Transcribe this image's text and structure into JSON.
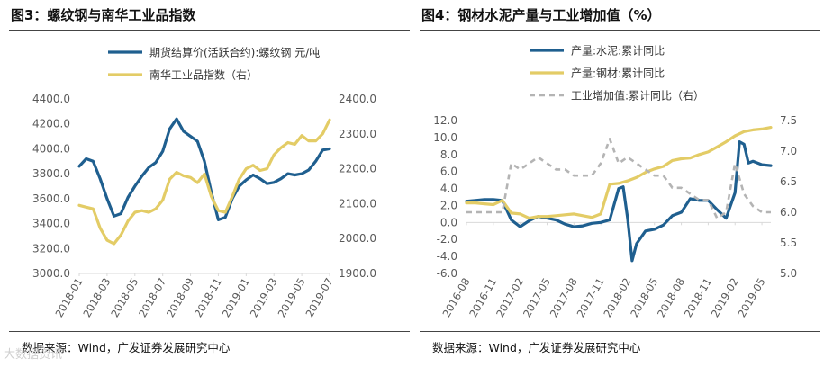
{
  "figures": [
    {
      "title": "图3：螺纹钢与南华工业品指数",
      "source": "数据来源：Wind，广发证券发展研究中心"
    },
    {
      "title": "图4：钢材水泥产量与工业增加值（%）",
      "source": "数据来源：Wind，广发证券发展研究中心"
    }
  ],
  "watermark": "大数据资讯",
  "colors": {
    "blue": "#1f5f8f",
    "yellow": "#e3cc66",
    "gray": "#b4b4b4",
    "axis": "#d9d9d9",
    "text": "#595959"
  },
  "chart_data": [
    {
      "type": "line",
      "title": "螺纹钢与南华工业品指数",
      "x_ticks": [
        "2018-01",
        "2018-03",
        "2018-05",
        "2018-07",
        "2018-09",
        "2018-11",
        "2019-01",
        "2019-03",
        "2019-05",
        "2019-07"
      ],
      "x_range": [
        0,
        18
      ],
      "y_left": {
        "range": [
          3000,
          4400
        ],
        "ticks": [
          "3000.0",
          "3200.0",
          "3400.0",
          "3600.0",
          "3800.0",
          "4000.0",
          "4200.0",
          "4400.0"
        ]
      },
      "y_right": {
        "range": [
          1900,
          2400
        ],
        "ticks": [
          "1900.0",
          "2000.0",
          "2100.0",
          "2200.0",
          "2300.0",
          "2400.0"
        ]
      },
      "series": [
        {
          "name": "期货结算价(活跃合约):螺纹钢 元/吨",
          "axis": "left",
          "color": "#1f5f8f",
          "dash": false,
          "x": [
            0,
            0.5,
            1,
            1.5,
            2,
            2.5,
            3,
            3.5,
            4,
            4.5,
            5,
            5.5,
            6,
            6.5,
            7,
            7.5,
            8,
            8.5,
            9,
            9.5,
            10,
            10.5,
            11,
            11.5,
            12,
            12.5,
            13,
            13.5,
            14,
            14.5,
            15,
            15.5,
            16,
            16.5,
            17,
            17.5,
            18
          ],
          "values": [
            3860,
            3920,
            3900,
            3760,
            3600,
            3460,
            3480,
            3610,
            3700,
            3780,
            3850,
            3890,
            3980,
            4160,
            4240,
            4140,
            4100,
            4060,
            3900,
            3650,
            3430,
            3450,
            3600,
            3700,
            3750,
            3790,
            3760,
            3720,
            3730,
            3760,
            3800,
            3790,
            3800,
            3830,
            3900,
            3990,
            4000
          ]
        },
        {
          "name": "南华工业品指数（右）",
          "axis": "right",
          "color": "#e3cc66",
          "dash": false,
          "x": [
            0,
            0.5,
            1,
            1.5,
            2,
            2.5,
            3,
            3.5,
            4,
            4.5,
            5,
            5.5,
            6,
            6.5,
            7,
            7.5,
            8,
            8.5,
            9,
            9.5,
            10,
            10.5,
            11,
            11.5,
            12,
            12.5,
            13,
            13.5,
            14,
            14.5,
            15,
            15.5,
            16,
            16.5,
            17,
            17.5,
            18
          ],
          "values": [
            2095,
            2090,
            2085,
            2030,
            1995,
            1985,
            2010,
            2050,
            2075,
            2080,
            2075,
            2085,
            2110,
            2170,
            2190,
            2180,
            2175,
            2160,
            2185,
            2120,
            2080,
            2075,
            2120,
            2170,
            2200,
            2210,
            2195,
            2200,
            2240,
            2260,
            2275,
            2270,
            2295,
            2280,
            2280,
            2300,
            2340
          ]
        }
      ]
    },
    {
      "type": "line",
      "title": "钢材水泥产量与工业增加值（%）",
      "x_ticks": [
        "2016-08",
        "2016-11",
        "2017-02",
        "2017-05",
        "2017-08",
        "2017-11",
        "2018-02",
        "2018-05",
        "2018-08",
        "2018-11",
        "2019-02",
        "2019-05"
      ],
      "x_range": [
        0,
        34
      ],
      "y_left": {
        "range": [
          -6,
          12
        ],
        "ticks": [
          "-6.0",
          "-4.0",
          "-2.0",
          "0.0",
          "2.0",
          "4.0",
          "6.0",
          "8.0",
          "10.0",
          "12.0"
        ]
      },
      "y_right": {
        "range": [
          5.0,
          7.5
        ],
        "ticks": [
          "5.0",
          "5.5",
          "6.0",
          "6.5",
          "7.0",
          "7.5"
        ]
      },
      "series": [
        {
          "name": "产量:水泥:累计同比",
          "axis": "left",
          "color": "#1f5f8f",
          "dash": false,
          "x": [
            0,
            1,
            2,
            3,
            4,
            5,
            6,
            7,
            8,
            9,
            10,
            11,
            12,
            13,
            14,
            15,
            16,
            17,
            17.5,
            18,
            18.5,
            19,
            20,
            21,
            22,
            23,
            24,
            25,
            26,
            27,
            28,
            29,
            30,
            30.5,
            31,
            31.5,
            32,
            33,
            34
          ],
          "values": [
            2.5,
            2.6,
            2.7,
            2.7,
            2.6,
            0.3,
            -0.5,
            0.2,
            0.7,
            0.5,
            0.3,
            -0.2,
            -0.5,
            -0.4,
            -0.1,
            0.0,
            0.3,
            4.0,
            4.2,
            0.5,
            -4.5,
            -2.5,
            -1.0,
            -0.8,
            -0.3,
            0.8,
            1.2,
            2.8,
            2.6,
            2.6,
            1.5,
            0.5,
            3.5,
            9.5,
            9.2,
            7.0,
            7.2,
            6.8,
            6.7
          ]
        },
        {
          "name": "产量:钢材:累计同比",
          "axis": "left",
          "color": "#e3cc66",
          "dash": false,
          "x": [
            0,
            1,
            2,
            3,
            4,
            5,
            6,
            7,
            8,
            9,
            10,
            11,
            12,
            13,
            14,
            15,
            16,
            17,
            18,
            19,
            20,
            21,
            22,
            23,
            24,
            25,
            26,
            27,
            28,
            29,
            30,
            31,
            32,
            33,
            34
          ],
          "values": [
            2.3,
            2.3,
            2.2,
            2.1,
            2.6,
            1.1,
            1.0,
            0.5,
            0.7,
            0.7,
            0.8,
            0.9,
            1.0,
            0.8,
            0.6,
            1.0,
            4.5,
            4.6,
            4.9,
            5.3,
            5.9,
            6.3,
            6.6,
            7.3,
            7.5,
            7.6,
            8.0,
            8.3,
            8.9,
            9.5,
            10.2,
            10.7,
            10.9,
            11.0,
            11.2
          ]
        },
        {
          "name": "工业增加值:累计同比（右）",
          "axis": "right",
          "color": "#b4b4b4",
          "dash": true,
          "x": [
            0,
            1,
            2,
            3,
            4,
            5,
            6,
            7,
            8,
            9,
            10,
            11,
            12,
            13,
            14,
            15,
            16,
            17,
            18,
            19,
            20,
            21,
            22,
            23,
            24,
            25,
            26,
            27,
            28,
            29,
            30,
            31,
            32,
            33,
            34
          ],
          "values": [
            6.0,
            6.0,
            6.0,
            6.0,
            6.0,
            6.8,
            6.7,
            6.8,
            6.9,
            6.8,
            6.7,
            6.7,
            6.6,
            6.6,
            6.6,
            6.8,
            7.2,
            6.8,
            6.9,
            6.8,
            6.7,
            6.6,
            6.6,
            6.4,
            6.4,
            6.3,
            6.2,
            6.2,
            5.9,
            6.0,
            6.8,
            6.3,
            6.1,
            6.0,
            6.0
          ]
        }
      ]
    }
  ]
}
